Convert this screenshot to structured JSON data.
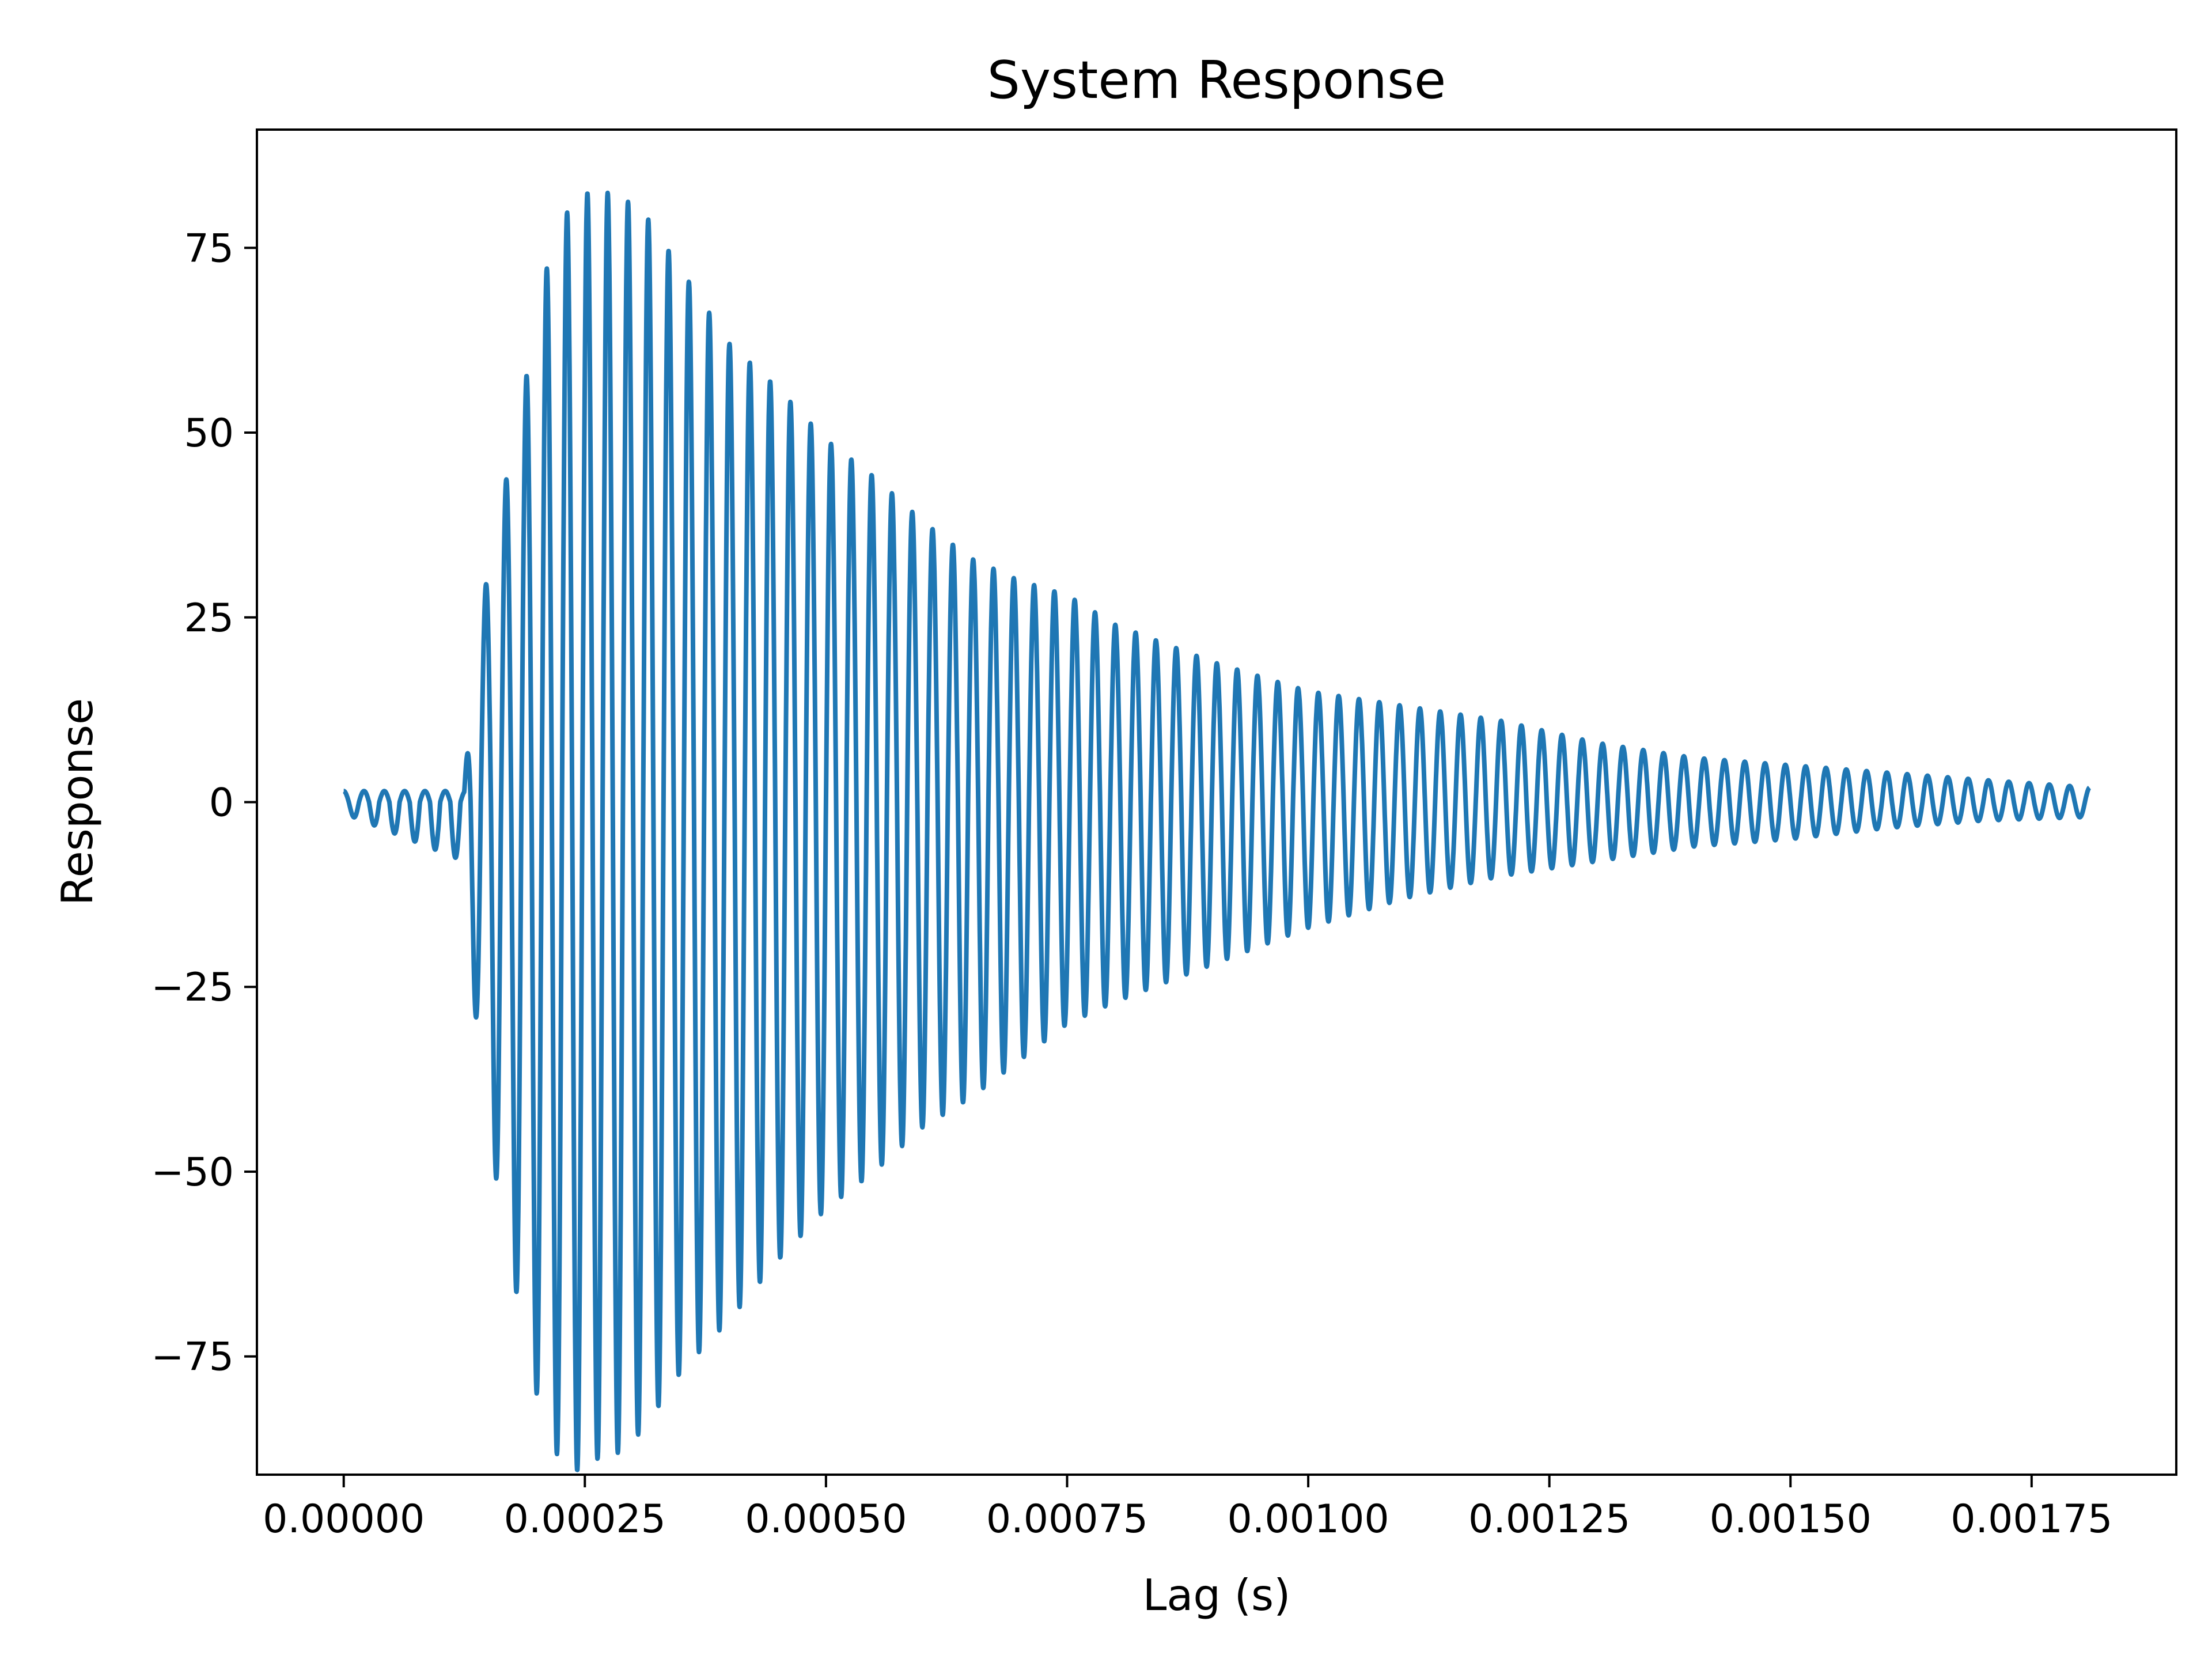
{
  "chart_data": {
    "type": "line",
    "title": "System Response",
    "xlabel": "Lag (s)",
    "ylabel": "Response",
    "xlim": [
      -9e-05,
      0.0019
    ],
    "ylim": [
      -91,
      91
    ],
    "x_ticks": [
      0,
      0.00025,
      0.0005,
      0.00075,
      0.001,
      0.00125,
      0.0015,
      0.00175
    ],
    "x_tick_labels": [
      "0.00000",
      "0.00025",
      "0.00050",
      "0.00075",
      "0.00100",
      "0.00125",
      "0.00150",
      "0.00175"
    ],
    "y_ticks": [
      -75,
      -50,
      -25,
      0,
      25,
      50,
      75
    ],
    "y_tick_labels": [
      "−75",
      "−50",
      "−25",
      "0",
      "25",
      "50",
      "75"
    ],
    "grid": false,
    "legend": "none",
    "color": "#1f77b4",
    "series": [
      {
        "x": [
          0,
          0.000125,
          0.000135,
          0.00016,
          0.00019,
          0.00021,
          0.000235,
          0.00026,
          0.000285,
          0.00031,
          0.00035,
          0.0004,
          0.00045,
          0.0005,
          0.00055,
          0.0006,
          0.00065,
          0.0007,
          0.00075,
          0.0008,
          0.0009,
          0.001,
          0.0011,
          0.0012,
          0.0013,
          0.0014,
          0.0015,
          0.0016,
          0.0017,
          0.00181
        ],
        "positive_envelope": [
          1.5,
          1.5,
          21,
          38,
          58,
          72,
          81,
          83,
          82,
          80,
          72,
          62,
          56,
          49,
          44,
          38,
          33,
          30,
          28,
          24,
          19,
          15,
          13,
          11,
          8,
          6,
          5,
          4,
          3,
          2
        ],
        "negative_envelope": [
          -1.5,
          -8,
          -27,
          -53,
          -74,
          -86,
          -91,
          -89,
          -88,
          -85,
          -77,
          -70,
          -62,
          -55,
          -50,
          -44,
          -40,
          -35,
          -30,
          -27,
          -22,
          -17,
          -13,
          -10,
          -8,
          -6,
          -5,
          -3.5,
          -2.5,
          -2
        ],
        "oscillation_frequency_hz": 47500
      }
    ]
  }
}
